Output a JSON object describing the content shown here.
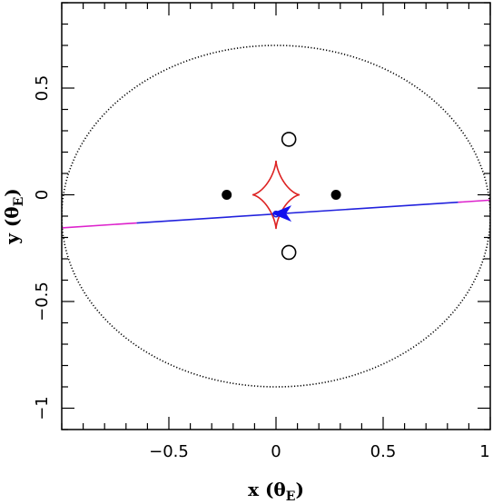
{
  "chart_data": {
    "type": "scatter",
    "xlabel": {
      "main": "x (θ",
      "sub": "E",
      "close": ")"
    },
    "ylabel": {
      "main": "y (θ",
      "sub": "E",
      "close": ")"
    },
    "xlim": [
      -1.0,
      1.0
    ],
    "ylim": [
      -1.1,
      0.9
    ],
    "x_ticks": [
      {
        "value": -0.5,
        "label": "−0.5"
      },
      {
        "value": 0,
        "label": "0"
      },
      {
        "value": 0.5,
        "label": "0.5"
      },
      {
        "value": 1,
        "label": "1"
      }
    ],
    "y_ticks": [
      {
        "value": -1,
        "label": "−1"
      },
      {
        "value": -0.5,
        "label": "−0.5"
      },
      {
        "value": 0,
        "label": "0"
      },
      {
        "value": 0.5,
        "label": "0.5"
      }
    ],
    "x_minor_step": 0.1,
    "y_minor_step": 0.1,
    "einstein_ring": {
      "center": [
        0,
        -0.1
      ],
      "rx": 1.0,
      "ry": 0.8,
      "style": "dotted",
      "color": "#000000"
    },
    "caustic": {
      "center": [
        0,
        0
      ],
      "half_width": 0.11,
      "half_height": 0.16,
      "color": "#dd2222"
    },
    "lens_masses": [
      {
        "x": -0.23,
        "y": 0.0
      },
      {
        "x": 0.28,
        "y": 0.0
      }
    ],
    "images": [
      {
        "x": 0.06,
        "y": 0.26
      },
      {
        "x": 0.06,
        "y": -0.27
      }
    ],
    "source_trajectory": {
      "segments": [
        {
          "x": [
            -1.0,
            -0.65
          ],
          "y": [
            -0.155,
            -0.132
          ],
          "color": "#dd22cc"
        },
        {
          "x": [
            -0.65,
            0.85
          ],
          "y": [
            -0.132,
            -0.035
          ],
          "color": "#2222dd"
        },
        {
          "x": [
            0.85,
            1.0
          ],
          "y": [
            -0.035,
            -0.025
          ],
          "color": "#dd22cc"
        }
      ]
    },
    "source": {
      "x": 0.0,
      "y": -0.09,
      "color": "#2222dd"
    },
    "direction_arrow": {
      "x": 0.03,
      "y": -0.088,
      "color": "#1111ee"
    },
    "colors": {
      "axis": "#000000",
      "mass": "#000000",
      "image_stroke": "#000000"
    }
  }
}
